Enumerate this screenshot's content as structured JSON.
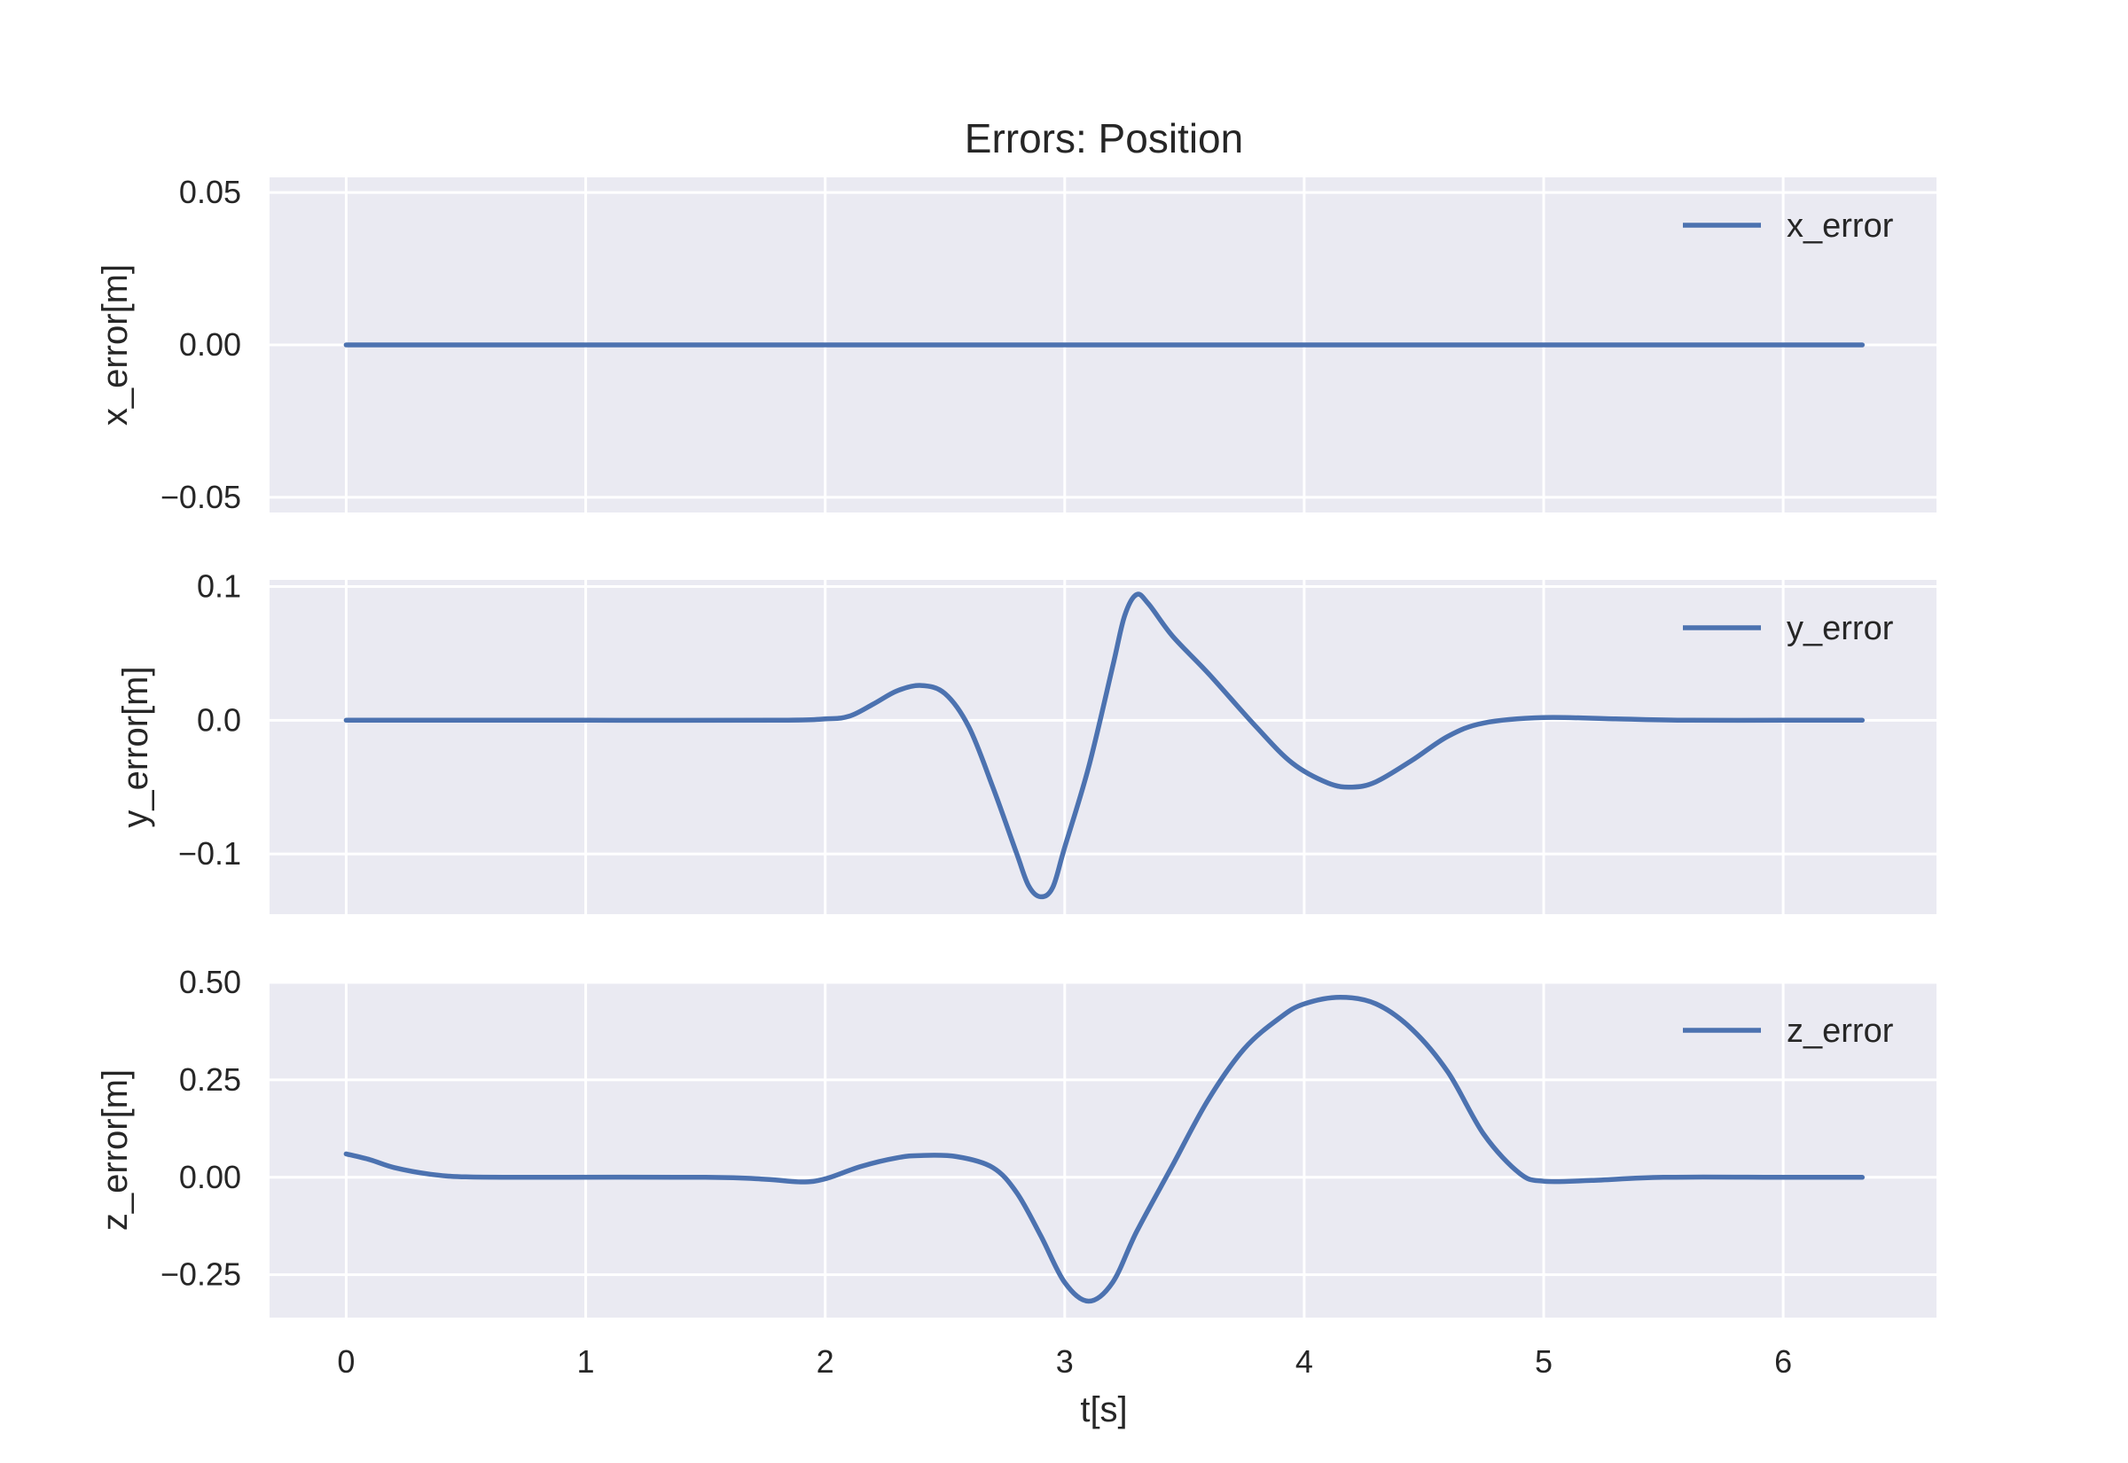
{
  "chart_data": {
    "type": "line",
    "title": "Errors: Position",
    "xlabel": "t[s]",
    "xlim": [
      -0.32,
      6.64
    ],
    "x_ticks": [
      0,
      1,
      2,
      3,
      4,
      5,
      6
    ],
    "x_tick_labels": [
      "0",
      "1",
      "2",
      "3",
      "4",
      "5",
      "6"
    ],
    "grid": true,
    "legend_position": "top-right",
    "line_color": "#4c72b0",
    "panel_color": "#eaeaf2",
    "panels": [
      {
        "ylabel": "x_error[m]",
        "ylim": [
          -0.055,
          0.055
        ],
        "y_ticks": [
          -0.05,
          0.0,
          0.05
        ],
        "y_tick_labels": [
          "−0.05",
          "0.00",
          "0.05"
        ],
        "series": [
          {
            "name": "x_error",
            "points": [
              [
                0,
                0
              ],
              [
                1,
                0
              ],
              [
                2,
                0
              ],
              [
                3,
                0
              ],
              [
                4,
                0
              ],
              [
                5,
                0
              ],
              [
                6,
                0
              ],
              [
                6.33,
                0
              ]
            ]
          }
        ]
      },
      {
        "ylabel": "y_error[m]",
        "ylim": [
          -0.145,
          0.105
        ],
        "y_ticks": [
          -0.1,
          0.0,
          0.1
        ],
        "y_tick_labels": [
          "−0.1",
          "0.0",
          "0.1"
        ],
        "series": [
          {
            "name": "y_error",
            "points": [
              [
                0,
                0
              ],
              [
                1,
                0
              ],
              [
                1.8,
                0
              ],
              [
                2.0,
                0.001
              ],
              [
                2.1,
                0.003
              ],
              [
                2.2,
                0.012
              ],
              [
                2.3,
                0.022
              ],
              [
                2.4,
                0.026
              ],
              [
                2.5,
                0.02
              ],
              [
                2.6,
                -0.005
              ],
              [
                2.7,
                -0.05
              ],
              [
                2.8,
                -0.1
              ],
              [
                2.85,
                -0.124
              ],
              [
                2.9,
                -0.132
              ],
              [
                2.95,
                -0.125
              ],
              [
                3.0,
                -0.095
              ],
              [
                3.1,
                -0.035
              ],
              [
                3.2,
                0.04
              ],
              [
                3.25,
                0.078
              ],
              [
                3.3,
                0.094
              ],
              [
                3.35,
                0.087
              ],
              [
                3.45,
                0.063
              ],
              [
                3.6,
                0.035
              ],
              [
                3.8,
                -0.005
              ],
              [
                3.95,
                -0.032
              ],
              [
                4.1,
                -0.047
              ],
              [
                4.2,
                -0.05
              ],
              [
                4.3,
                -0.046
              ],
              [
                4.45,
                -0.03
              ],
              [
                4.6,
                -0.012
              ],
              [
                4.75,
                -0.002
              ],
              [
                5.0,
                0.002
              ],
              [
                5.3,
                0.001
              ],
              [
                5.6,
                0
              ],
              [
                6.0,
                0
              ],
              [
                6.33,
                0
              ]
            ]
          }
        ]
      },
      {
        "ylabel": "z_error[m]",
        "ylim": [
          -0.36,
          0.5
        ],
        "y_ticks": [
          -0.25,
          0.0,
          0.25,
          0.5
        ],
        "y_tick_labels": [
          "−0.25",
          "0.00",
          "0.25",
          "0.50"
        ],
        "series": [
          {
            "name": "z_error",
            "points": [
              [
                0,
                0.06
              ],
              [
                0.1,
                0.045
              ],
              [
                0.2,
                0.025
              ],
              [
                0.35,
                0.008
              ],
              [
                0.5,
                0.001
              ],
              [
                0.8,
                0
              ],
              [
                1.5,
                0
              ],
              [
                1.75,
                -0.005
              ],
              [
                1.9,
                -0.012
              ],
              [
                2.0,
                -0.004
              ],
              [
                2.15,
                0.028
              ],
              [
                2.3,
                0.05
              ],
              [
                2.4,
                0.056
              ],
              [
                2.55,
                0.053
              ],
              [
                2.7,
                0.025
              ],
              [
                2.8,
                -0.04
              ],
              [
                2.9,
                -0.15
              ],
              [
                3.0,
                -0.27
              ],
              [
                3.1,
                -0.318
              ],
              [
                3.2,
                -0.27
              ],
              [
                3.3,
                -0.14
              ],
              [
                3.45,
                0.03
              ],
              [
                3.6,
                0.2
              ],
              [
                3.75,
                0.33
              ],
              [
                3.9,
                0.41
              ],
              [
                4.0,
                0.445
              ],
              [
                4.15,
                0.462
              ],
              [
                4.3,
                0.445
              ],
              [
                4.45,
                0.38
              ],
              [
                4.6,
                0.27
              ],
              [
                4.75,
                0.11
              ],
              [
                4.9,
                0.01
              ],
              [
                5.0,
                -0.01
              ],
              [
                5.2,
                -0.008
              ],
              [
                5.5,
                0
              ],
              [
                6.0,
                0
              ],
              [
                6.33,
                0
              ]
            ]
          }
        ]
      }
    ]
  }
}
